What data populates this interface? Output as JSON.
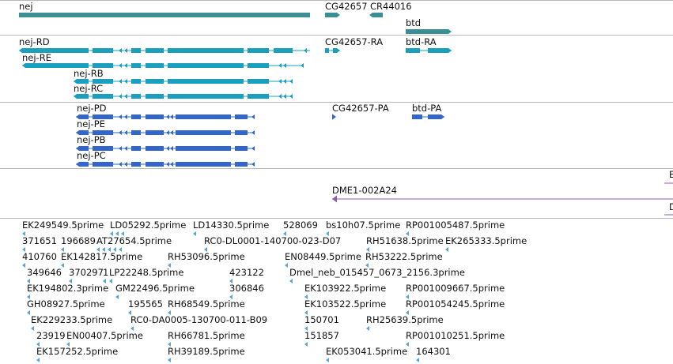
{
  "colors": {
    "gene": "#3a8f95",
    "transcript": "#1a9fbf",
    "protein": "#3366cc",
    "primer_region": "#8a5bb0",
    "est": "#5ca3d6",
    "track_border": "#b8b8b8"
  },
  "tracks": {
    "genes": {
      "items": [
        {
          "label": "nej",
          "color": "gene",
          "kind": "bar"
        },
        {
          "label": "CG42657",
          "color": "gene",
          "kind": "bar"
        },
        {
          "label": "CR44016",
          "color": "gene",
          "kind": "bar"
        },
        {
          "label": "btd",
          "color": "gene",
          "kind": "bar"
        }
      ]
    },
    "transcripts": {
      "items": [
        {
          "label": "nej-RD",
          "color": "transcript",
          "kind": "model"
        },
        {
          "label": "nej-RE",
          "color": "transcript",
          "kind": "model"
        },
        {
          "label": "nej-RB",
          "color": "transcript",
          "kind": "model"
        },
        {
          "label": "nej-RC",
          "color": "transcript",
          "kind": "model"
        },
        {
          "label": "CG42657-RA",
          "color": "transcript",
          "kind": "model"
        },
        {
          "label": "btd-RA",
          "color": "transcript",
          "kind": "model"
        }
      ]
    },
    "proteins": {
      "items": [
        {
          "label": "nej-PD",
          "color": "protein",
          "kind": "model"
        },
        {
          "label": "nej-PE",
          "color": "protein",
          "kind": "model"
        },
        {
          "label": "nej-PB",
          "color": "protein",
          "kind": "model"
        },
        {
          "label": "nej-PC",
          "color": "protein",
          "kind": "model"
        },
        {
          "label": "CG42657-PA",
          "color": "protein",
          "kind": "model"
        },
        {
          "label": "btd-PA",
          "color": "protein",
          "kind": "model"
        }
      ]
    },
    "primers": {
      "items": [
        {
          "label": "DME1-002A24",
          "color": "primer_region",
          "kind": "line"
        },
        {
          "label": "E",
          "color": "primer_region",
          "kind": "glyph"
        },
        {
          "label": "D",
          "color": "primer_region",
          "kind": "glyph"
        }
      ]
    },
    "ests": {
      "items": [
        {
          "label": "EK249549.5prime"
        },
        {
          "label": "LD05292.5prime"
        },
        {
          "label": "LD14330.5prime"
        },
        {
          "label": "528069"
        },
        {
          "label": "bs10h07.5prime"
        },
        {
          "label": "RP001005487.5prime"
        },
        {
          "label": "371651"
        },
        {
          "label": "196689"
        },
        {
          "label": "AT27654.5prime"
        },
        {
          "label": "RC0-DL0001-140700-023-D07"
        },
        {
          "label": "RH51638.5prime"
        },
        {
          "label": "EK265333.5prime"
        },
        {
          "label": "410760"
        },
        {
          "label": "EK142817.5prime"
        },
        {
          "label": "RH53096.5prime"
        },
        {
          "label": "EN08449.5prime"
        },
        {
          "label": "RH53222.5prime"
        },
        {
          "label": "349646"
        },
        {
          "label": "370297"
        },
        {
          "label": "1"
        },
        {
          "label": "LP22248.5prime"
        },
        {
          "label": "423122"
        },
        {
          "label": "Dmel_neb_015457_0673_2156.3prime"
        },
        {
          "label": "EK194802.3prime"
        },
        {
          "label": "GM22496.5prime"
        },
        {
          "label": "306846"
        },
        {
          "label": "EK103922.5prime"
        },
        {
          "label": "RP001009667.5prime"
        },
        {
          "label": "GH08927.5prime"
        },
        {
          "label": "195565"
        },
        {
          "label": "RH68549.5prime"
        },
        {
          "label": "EK103522.5prime"
        },
        {
          "label": "RP001054245.5prime"
        },
        {
          "label": "EK229233.5prime"
        },
        {
          "label": "RC0-DA0005-130700-011-B09"
        },
        {
          "label": "150701"
        },
        {
          "label": "RH25639.5prime"
        },
        {
          "label": "23919"
        },
        {
          "label": "EN00407.5prime"
        },
        {
          "label": "RH66781.5prime"
        },
        {
          "label": "151857"
        },
        {
          "label": "RP001010251.5prime"
        },
        {
          "label": "EK157252.5prime"
        },
        {
          "label": "RH39189.5prime"
        },
        {
          "label": "EK053041.5prime"
        },
        {
          "label": "164301"
        }
      ]
    }
  }
}
